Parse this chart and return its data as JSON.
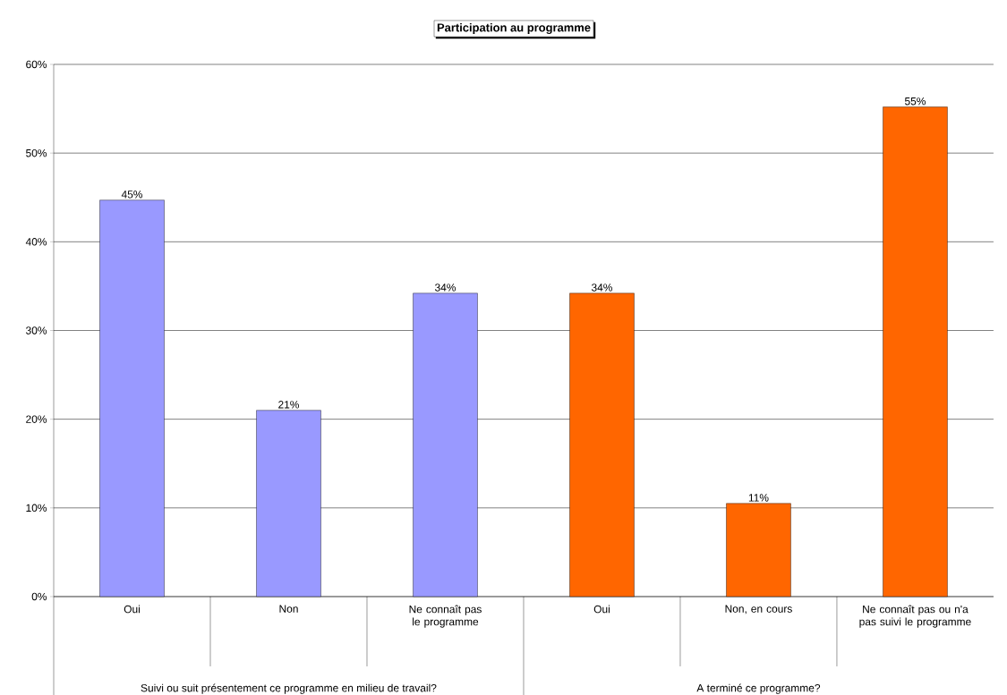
{
  "chart_data": {
    "type": "bar",
    "title": "Participation au programme",
    "categories": [
      "Oui",
      "Non",
      "Ne connaît pas le programme",
      "Oui",
      "Non, en cours",
      "Ne connaît pas ou n'a pas suivi le programme"
    ],
    "series": [
      {
        "color": "#9999ff",
        "values": [
          44.7,
          21.0,
          34.2,
          null,
          null,
          null
        ],
        "value_labels": [
          "45%",
          "21%",
          "34%",
          null,
          null,
          null
        ]
      },
      {
        "color": "#ff6600",
        "values": [
          null,
          null,
          null,
          34.2,
          10.5,
          55.2
        ],
        "value_labels": [
          null,
          null,
          null,
          "34%",
          "11%",
          "55%"
        ]
      }
    ],
    "ylim": [
      0,
      60
    ],
    "yticks": [
      {
        "value": 0,
        "label": "0%"
      },
      {
        "value": 10,
        "label": "10%"
      },
      {
        "value": 20,
        "label": "20%"
      },
      {
        "value": 30,
        "label": "30%"
      },
      {
        "value": 40,
        "label": "40%"
      },
      {
        "value": 50,
        "label": "50%"
      },
      {
        "value": 60,
        "label": "60%"
      }
    ],
    "annotations": [
      "Suivi ou suit présentement ce programme en milieu de travail?",
      "A terminé ce programme?"
    ],
    "grid": "y"
  }
}
